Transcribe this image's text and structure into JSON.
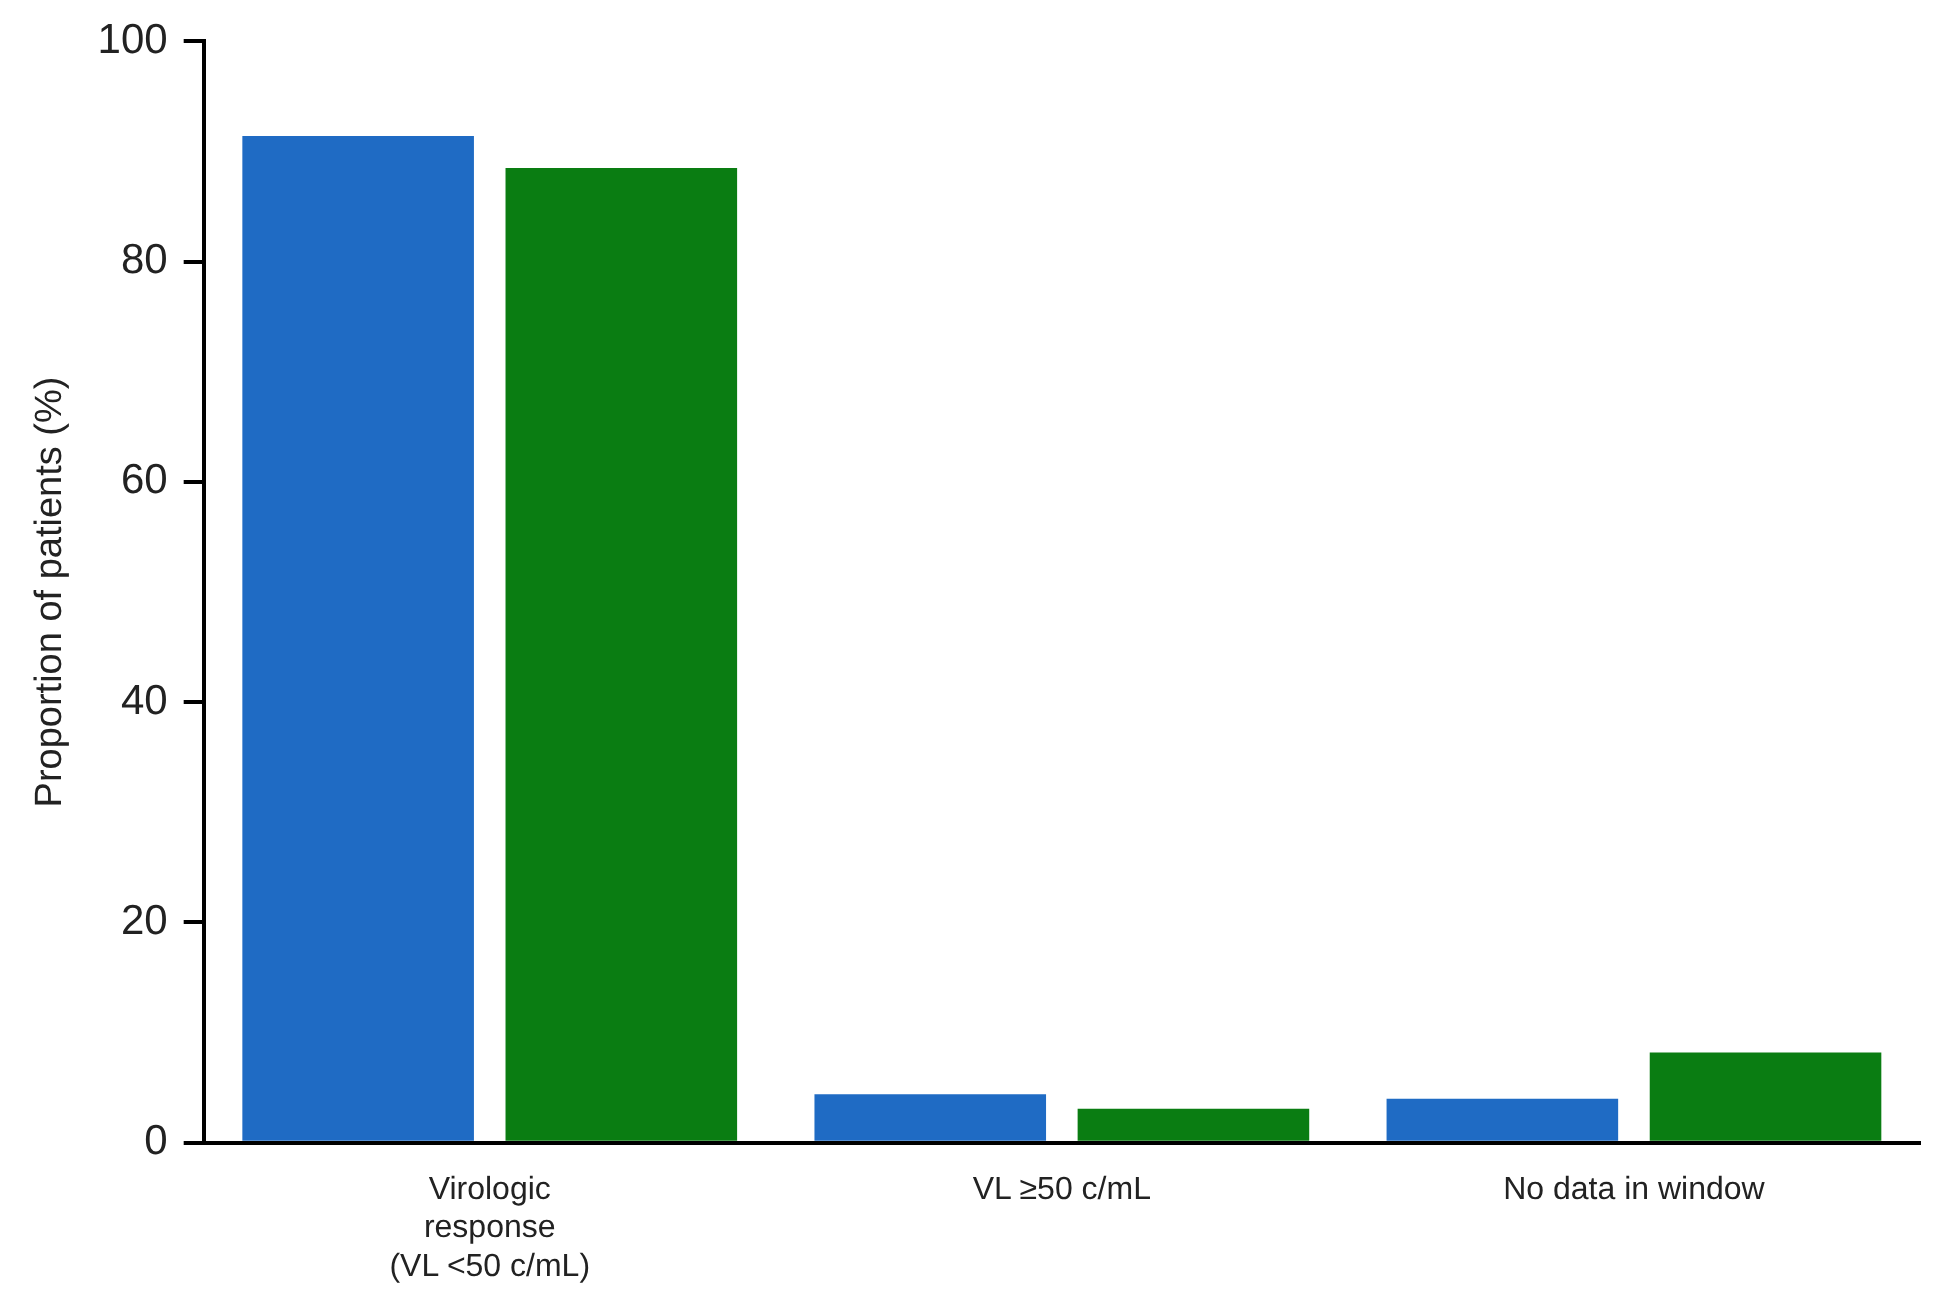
{
  "chart_data": {
    "type": "bar",
    "ylabel": "Proportion of patients (%)",
    "categories": [
      "Virologic\nresponse\n(VL <50 c/mL)",
      "VL ≥50 c/mL",
      "No data in window"
    ],
    "series": [
      {
        "color": "#1f6bc4",
        "values": [
          91.4,
          4.4,
          4.0
        ]
      },
      {
        "color": "#0a7d12",
        "values": [
          88.5,
          3.1,
          8.2
        ]
      }
    ],
    "ylim": [
      0,
      100
    ],
    "yticks": [
      0,
      20,
      40,
      60,
      80,
      100
    ],
    "grid": false,
    "legend": false
  }
}
